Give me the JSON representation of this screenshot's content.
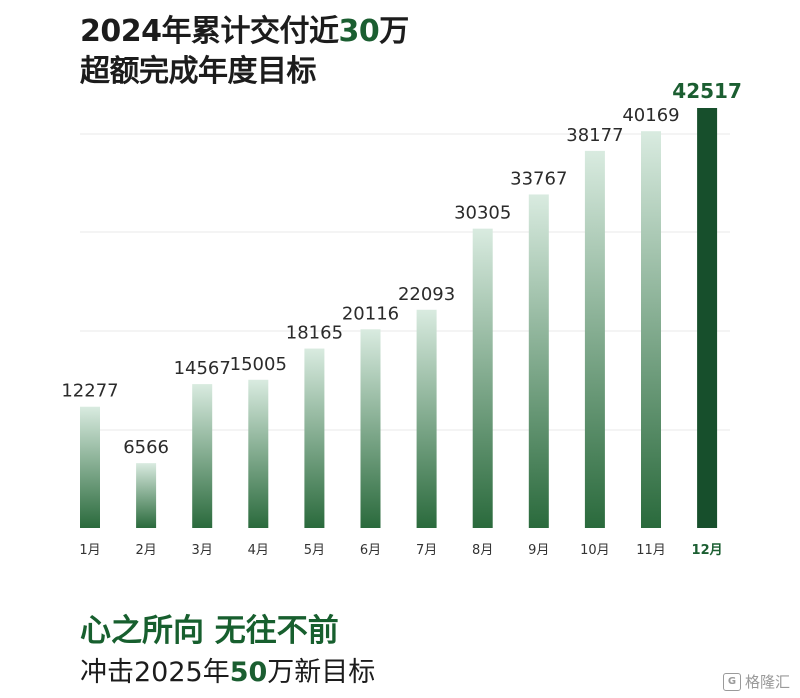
{
  "header": {
    "title_prefix": "2024年累计交付近",
    "title_number": "30",
    "title_suffix": "万",
    "subtitle": "超额完成年度目标"
  },
  "footer": {
    "slogan": "心之所向 无往不前",
    "target_prefix": "冲击2025年",
    "target_number": "50",
    "target_suffix": "万新目标"
  },
  "watermark": {
    "text": "格隆汇"
  },
  "colors": {
    "brand_green": "#1b5e31",
    "highlight_bar": "#174f2c",
    "bar_top": "#d9ebe0",
    "bar_bottom": "#2a6a3c",
    "grid": "#e9e9e9"
  },
  "chart_data": {
    "type": "bar",
    "categories": [
      "1月",
      "2月",
      "3月",
      "4月",
      "5月",
      "6月",
      "7月",
      "8月",
      "9月",
      "10月",
      "11月",
      "12月"
    ],
    "values": [
      12277,
      6566,
      14567,
      15005,
      18165,
      20116,
      22093,
      30305,
      33767,
      38177,
      40169,
      42517
    ],
    "highlight_index": 11,
    "value_labels": [
      "12277",
      "6566",
      "14567",
      "15005",
      "18165",
      "20116",
      "22093",
      "30305",
      "33767",
      "38177",
      "40169",
      "42517"
    ],
    "title": "",
    "xlabel": "",
    "ylabel": "",
    "ylim": [
      0,
      42517
    ],
    "grid": true,
    "legend": "none"
  }
}
